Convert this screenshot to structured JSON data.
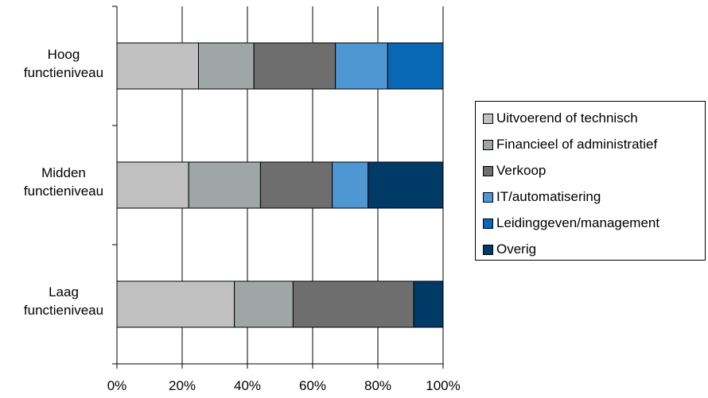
{
  "chart_data": {
    "type": "bar",
    "orientation": "horizontal",
    "stacked": true,
    "percent": true,
    "categories": [
      "Hoog functieniveau",
      "Midden functieniveau",
      "Laag functieniveau"
    ],
    "category_lines": [
      [
        "Hoog",
        "functieniveau"
      ],
      [
        "Midden",
        "functieniveau"
      ],
      [
        "Laag",
        "functieniveau"
      ]
    ],
    "series": [
      {
        "name": "Uitvoerend of technisch",
        "color": "#c0c0c0",
        "values": [
          25,
          22,
          36
        ]
      },
      {
        "name": "Financieel of administratief",
        "color": "#a0a6a6",
        "values": [
          17,
          22,
          18
        ]
      },
      {
        "name": "Verkoop",
        "color": "#6e6e6e",
        "values": [
          25,
          22,
          37
        ]
      },
      {
        "name": "IT/automatisering",
        "color": "#4f97d2",
        "values": [
          16,
          11,
          0
        ]
      },
      {
        "name": "Leidinggeven/management",
        "color": "#0a67b6",
        "values": [
          17,
          0,
          0
        ]
      },
      {
        "name": "Overig",
        "color": "#003a66",
        "values": [
          0,
          23,
          9
        ]
      }
    ],
    "xlim": [
      0,
      100
    ],
    "x_ticks": [
      "0%",
      "20%",
      "40%",
      "60%",
      "80%",
      "100%"
    ],
    "grid": "vertical",
    "legend_position": "right"
  }
}
